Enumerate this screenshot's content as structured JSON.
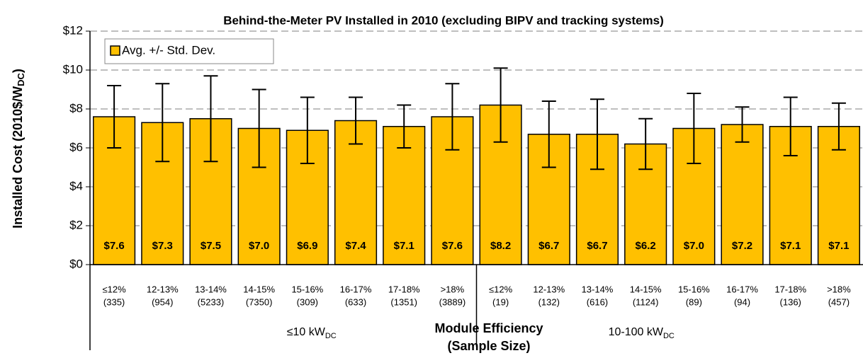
{
  "chart_data": {
    "type": "bar",
    "title": "Behind-the-Meter  PV Installed in 2010 (excluding BIPV and tracking systems)",
    "ylabel": [
      "Installed Cost (2010$/W",
      "DC",
      ")"
    ],
    "xlabel": [
      "Module Efficiency",
      "(Sample Size)"
    ],
    "groups": [
      {
        "text": "≤10 kW",
        "sub": "DC"
      },
      {
        "text": "10-100 kW",
        "sub": "DC"
      }
    ],
    "categories": [
      "≤12%",
      "12-13%",
      "13-14%",
      "14-15%",
      "15-16%",
      "16-17%",
      "17-18%",
      ">18%",
      "≤12%",
      "12-13%",
      "13-14%",
      "14-15%",
      "15-16%",
      "16-17%",
      "17-18%",
      ">18%"
    ],
    "sample_sizes": [
      "(335)",
      "(954)",
      "(5233)",
      "(7350)",
      "(309)",
      "(633)",
      "(1351)",
      "(3889)",
      "(19)",
      "(132)",
      "(616)",
      "(1124)",
      "(89)",
      "(94)",
      "(136)",
      "(457)"
    ],
    "series": [
      {
        "name": "Avg. +/- Std. Dev.",
        "color": "#ffc000",
        "values": [
          7.6,
          7.3,
          7.5,
          7.0,
          6.9,
          7.4,
          7.1,
          7.6,
          8.2,
          6.7,
          6.7,
          6.2,
          7.0,
          7.2,
          7.1,
          7.1
        ],
        "value_labels": [
          "$7.6",
          "$7.3",
          "$7.5",
          "$7.0",
          "$6.9",
          "$7.4",
          "$7.1",
          "$7.6",
          "$8.2",
          "$6.7",
          "$6.7",
          "$6.2",
          "$7.0",
          "$7.2",
          "$7.1",
          "$7.1"
        ],
        "errors": [
          1.6,
          2.0,
          2.2,
          2.0,
          1.7,
          1.2,
          1.1,
          1.7,
          1.9,
          1.7,
          1.8,
          1.3,
          1.8,
          0.9,
          1.5,
          1.2
        ]
      }
    ],
    "ylim": [
      0,
      12
    ],
    "yticks": [
      {
        "value": 0,
        "label": "$0"
      },
      {
        "value": 2,
        "label": "$2"
      },
      {
        "value": 4,
        "label": "$4"
      },
      {
        "value": 6,
        "label": "$6"
      },
      {
        "value": 8,
        "label": "$8"
      },
      {
        "value": 10,
        "label": "$10"
      },
      {
        "value": 12,
        "label": "$12"
      }
    ],
    "grid": true,
    "legend": "upper left"
  }
}
